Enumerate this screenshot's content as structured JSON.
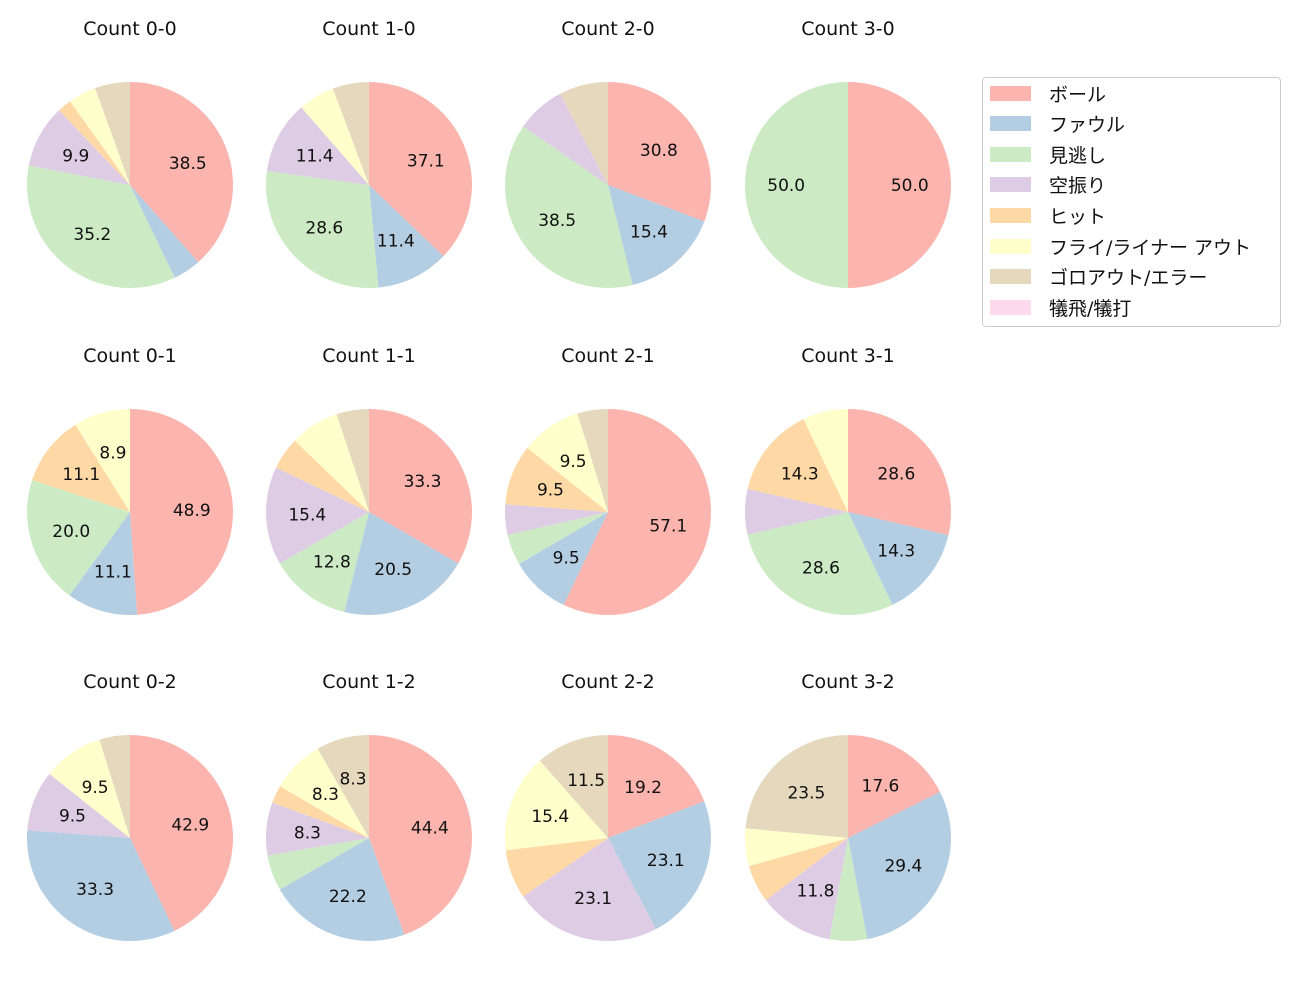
{
  "chart_data": {
    "type": "pie",
    "categories": [
      "ボール",
      "ファウル",
      "見逃し",
      "空振り",
      "ヒット",
      "フライ/ライナー アウト",
      "ゴロアウト/エラー",
      "犠飛/犠打"
    ],
    "colors": [
      "#fbb4ae",
      "#b3cde3",
      "#ccebc5",
      "#decbe4",
      "#fed9a6",
      "#ffffcc",
      "#e5d8bd",
      "#fddaec"
    ],
    "legend_position": "right",
    "pies": [
      {
        "title": "Count 0-0",
        "values": [
          38.5,
          4.4,
          35.2,
          9.9,
          2.2,
          4.4,
          5.5,
          0
        ],
        "labels": [
          "38.5",
          "",
          "35.2",
          "9.9",
          "",
          "",
          "",
          ""
        ]
      },
      {
        "title": "Count 1-0",
        "values": [
          37.1,
          11.4,
          28.6,
          11.4,
          0,
          5.7,
          5.7,
          0
        ],
        "labels": [
          "37.1",
          "11.4",
          "28.6",
          "11.4",
          "",
          "",
          "",
          ""
        ]
      },
      {
        "title": "Count 2-0",
        "values": [
          30.8,
          15.4,
          38.5,
          7.7,
          0,
          0,
          7.7,
          0
        ],
        "labels": [
          "30.8",
          "15.4",
          "38.5",
          "",
          "",
          "",
          "",
          ""
        ]
      },
      {
        "title": "Count 3-0",
        "values": [
          50.0,
          0,
          50.0,
          0,
          0,
          0,
          0,
          0
        ],
        "labels": [
          "50.0",
          "",
          "50.0",
          "",
          "",
          "",
          "",
          ""
        ]
      },
      {
        "title": "Count 0-1",
        "values": [
          48.9,
          11.1,
          20.0,
          0,
          11.1,
          8.9,
          0,
          0
        ],
        "labels": [
          "48.9",
          "11.1",
          "20.0",
          "",
          "11.1",
          "8.9",
          "",
          ""
        ]
      },
      {
        "title": "Count 1-1",
        "values": [
          33.3,
          20.5,
          12.8,
          15.4,
          5.1,
          7.7,
          5.1,
          0
        ],
        "labels": [
          "33.3",
          "20.5",
          "12.8",
          "15.4",
          "",
          "",
          "",
          ""
        ]
      },
      {
        "title": "Count 2-1",
        "values": [
          57.1,
          9.5,
          4.8,
          4.8,
          9.5,
          9.5,
          4.8,
          0
        ],
        "labels": [
          "57.1",
          "9.5",
          "",
          "",
          "9.5",
          "9.5",
          "",
          ""
        ]
      },
      {
        "title": "Count 3-1",
        "values": [
          28.6,
          14.3,
          28.6,
          7.1,
          14.3,
          7.1,
          0,
          0
        ],
        "labels": [
          "28.6",
          "14.3",
          "28.6",
          "",
          "14.3",
          "",
          "",
          ""
        ]
      },
      {
        "title": "Count 0-2",
        "values": [
          42.9,
          33.3,
          0,
          9.5,
          0,
          9.5,
          4.8,
          0
        ],
        "labels": [
          "42.9",
          "33.3",
          "",
          "9.5",
          "",
          "9.5",
          "",
          ""
        ]
      },
      {
        "title": "Count 1-2",
        "values": [
          44.4,
          22.2,
          5.6,
          8.3,
          2.8,
          8.3,
          8.3,
          0
        ],
        "labels": [
          "44.4",
          "22.2",
          "",
          "8.3",
          "",
          "8.3",
          "8.3",
          ""
        ]
      },
      {
        "title": "Count 2-2",
        "values": [
          19.2,
          23.1,
          0,
          23.1,
          7.7,
          15.4,
          11.5,
          0
        ],
        "labels": [
          "19.2",
          "23.1",
          "",
          "23.1",
          "",
          "15.4",
          "11.5",
          ""
        ]
      },
      {
        "title": "Count 3-2",
        "values": [
          17.6,
          29.4,
          5.9,
          11.8,
          5.9,
          5.9,
          23.5,
          0
        ],
        "labels": [
          "17.6",
          "29.4",
          "",
          "11.8",
          "",
          "",
          "23.5",
          ""
        ]
      }
    ]
  }
}
